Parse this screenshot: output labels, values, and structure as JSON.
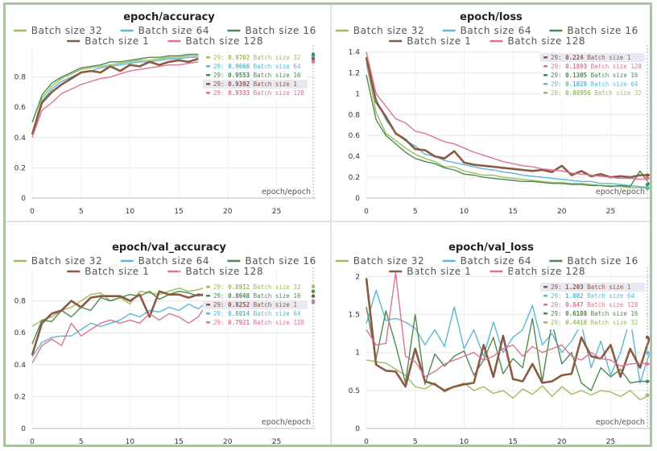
{
  "colors": {
    "Batch size 32": "#9bbd5e",
    "Batch size 64": "#5bb7d6",
    "Batch size 16": "#4c8a53",
    "Batch size 1": "#8b5a44",
    "Batch size 128": "#d97493"
  },
  "chart_data": [
    {
      "type": "line",
      "title": "epoch/accuracy",
      "xlabel": "epoch/epoch",
      "xlim": [
        0,
        29
      ],
      "ylim": [
        0,
        1
      ],
      "xticks": [
        0,
        5,
        10,
        15,
        20,
        25
      ],
      "yticks": [
        0,
        0.2,
        0.4,
        0.6,
        0.8
      ],
      "legend_rows": [
        [
          "Batch size 32",
          "Batch size 64",
          "Batch size 16"
        ],
        [
          "Batch size 1",
          "Batch size 128"
        ]
      ],
      "series": [
        {
          "name": "Batch size 32",
          "values": [
            0.43,
            0.66,
            0.74,
            0.79,
            0.82,
            0.85,
            0.86,
            0.87,
            0.88,
            0.89,
            0.9,
            0.91,
            0.91,
            0.92,
            0.93,
            0.93,
            0.94,
            0.94
          ]
        },
        {
          "name": "Batch size 64",
          "values": [
            0.42,
            0.64,
            0.72,
            0.77,
            0.8,
            0.83,
            0.84,
            0.86,
            0.87,
            0.88,
            0.89,
            0.9,
            0.9,
            0.91,
            0.92,
            0.92,
            0.93,
            0.93
          ]
        },
        {
          "name": "Batch size 16",
          "values": [
            0.5,
            0.68,
            0.76,
            0.8,
            0.83,
            0.86,
            0.87,
            0.88,
            0.9,
            0.9,
            0.91,
            0.92,
            0.93,
            0.93,
            0.94,
            0.94,
            0.95,
            0.95
          ]
        },
        {
          "name": "Batch size 1",
          "values": [
            0.42,
            0.63,
            0.7,
            0.75,
            0.79,
            0.83,
            0.84,
            0.83,
            0.87,
            0.84,
            0.88,
            0.87,
            0.9,
            0.88,
            0.9,
            0.91,
            0.9,
            0.92
          ]
        },
        {
          "name": "Batch size 128",
          "values": [
            0.4,
            0.58,
            0.63,
            0.69,
            0.72,
            0.75,
            0.77,
            0.79,
            0.8,
            0.82,
            0.84,
            0.85,
            0.86,
            0.87,
            0.88,
            0.88,
            0.89,
            0.9
          ]
        }
      ],
      "tooltip": [
        {
          "step": "29:",
          "value": "0.9702",
          "name": "Batch size 32"
        },
        {
          "step": "29:",
          "value": "0.9666",
          "name": "Batch size 64"
        },
        {
          "step": "29:",
          "value": "0.9553",
          "name": "Batch size 16"
        },
        {
          "step": "29:",
          "value": "0.9392",
          "name": "Batch size 1"
        },
        {
          "step": "29:",
          "value": "0.9333",
          "name": "Batch size 128"
        }
      ],
      "highlight_index": 3
    },
    {
      "type": "line",
      "title": "epoch/loss",
      "xlabel": "epoch/epoch",
      "xlim": [
        0,
        29
      ],
      "ylim": [
        0,
        1.45
      ],
      "xticks": [
        0,
        5,
        10,
        15,
        20,
        25
      ],
      "yticks": [
        0,
        0.2,
        0.4,
        0.6,
        0.8,
        1,
        1.2,
        1.4
      ],
      "legend_rows": [
        [
          "Batch size 32",
          "Batch size 64",
          "Batch size 16"
        ],
        [
          "Batch size 1",
          "Batch size 128"
        ]
      ],
      "series": [
        {
          "name": "Batch size 32",
          "values": [
            1.3,
            0.82,
            0.62,
            0.55,
            0.48,
            0.42,
            0.38,
            0.35,
            0.3,
            0.3,
            0.26,
            0.24,
            0.22,
            0.22,
            0.2,
            0.19,
            0.18,
            0.17,
            0.16,
            0.15,
            0.15,
            0.14,
            0.14,
            0.13,
            0.12,
            0.12,
            0.11,
            0.1,
            0.1,
            0.09
          ]
        },
        {
          "name": "Batch size 64",
          "values": [
            1.34,
            0.95,
            0.75,
            0.62,
            0.55,
            0.5,
            0.42,
            0.4,
            0.36,
            0.34,
            0.32,
            0.3,
            0.28,
            0.27,
            0.25,
            0.24,
            0.22,
            0.21,
            0.2,
            0.19,
            0.18,
            0.17,
            0.16,
            0.16,
            0.14,
            0.14,
            0.13,
            0.12,
            0.11,
            0.1
          ]
        },
        {
          "name": "Batch size 16",
          "values": [
            1.18,
            0.75,
            0.6,
            0.52,
            0.44,
            0.38,
            0.35,
            0.33,
            0.29,
            0.27,
            0.23,
            0.22,
            0.2,
            0.19,
            0.18,
            0.17,
            0.16,
            0.16,
            0.15,
            0.14,
            0.14,
            0.13,
            0.13,
            0.12,
            0.12,
            0.11,
            0.12,
            0.11,
            0.26,
            0.13
          ]
        },
        {
          "name": "Batch size 1",
          "values": [
            1.35,
            0.92,
            0.78,
            0.62,
            0.56,
            0.47,
            0.46,
            0.4,
            0.38,
            0.45,
            0.34,
            0.32,
            0.31,
            0.3,
            0.29,
            0.28,
            0.27,
            0.26,
            0.27,
            0.25,
            0.31,
            0.22,
            0.26,
            0.21,
            0.23,
            0.2,
            0.21,
            0.2,
            0.22,
            0.22
          ]
        },
        {
          "name": "Batch size 128",
          "values": [
            1.4,
            1.0,
            0.88,
            0.76,
            0.72,
            0.64,
            0.62,
            0.58,
            0.54,
            0.52,
            0.48,
            0.44,
            0.41,
            0.38,
            0.35,
            0.33,
            0.31,
            0.3,
            0.28,
            0.27,
            0.26,
            0.24,
            0.23,
            0.22,
            0.21,
            0.2,
            0.19,
            0.19,
            0.18,
            0.19
          ]
        }
      ],
      "tooltip": [
        {
          "step": "29:",
          "value": "0.224",
          "name": "Batch size 1"
        },
        {
          "step": "29:",
          "value": "0.1893",
          "name": "Batch size 128"
        },
        {
          "step": "29:",
          "value": "0.1305",
          "name": "Batch size 16"
        },
        {
          "step": "29:",
          "value": "0.1028",
          "name": "Batch size 64"
        },
        {
          "step": "29:",
          "value": "0.08956",
          "name": "Batch size 32"
        }
      ],
      "highlight_index": 0
    },
    {
      "type": "line",
      "title": "epoch/val_accuracy",
      "xlabel": "epoch/epoch",
      "xlim": [
        0,
        29
      ],
      "ylim": [
        0,
        1
      ],
      "xticks": [
        0,
        5,
        10,
        15,
        20,
        25
      ],
      "yticks": [
        0,
        0.2,
        0.4,
        0.6,
        0.8
      ],
      "legend_rows": [
        [
          "Batch size 32",
          "Batch size 64",
          "Batch size 16"
        ],
        [
          "Batch size 1",
          "Batch size 128"
        ]
      ],
      "series": [
        {
          "name": "Batch size 32",
          "values": [
            0.64,
            0.68,
            0.7,
            0.74,
            0.76,
            0.8,
            0.84,
            0.85,
            0.8,
            0.82,
            0.78,
            0.86,
            0.85,
            0.84,
            0.86,
            0.88,
            0.86,
            0.87,
            0.89
          ]
        },
        {
          "name": "Batch size 64",
          "values": [
            0.45,
            0.54,
            0.57,
            0.58,
            0.58,
            0.62,
            0.66,
            0.64,
            0.66,
            0.68,
            0.72,
            0.7,
            0.74,
            0.73,
            0.76,
            0.74,
            0.78,
            0.75,
            0.8
          ]
        },
        {
          "name": "Batch size 16",
          "values": [
            0.53,
            0.68,
            0.67,
            0.74,
            0.7,
            0.76,
            0.74,
            0.82,
            0.8,
            0.82,
            0.84,
            0.83,
            0.86,
            0.81,
            0.84,
            0.86,
            0.85,
            0.83,
            0.86
          ]
        },
        {
          "name": "Batch size 1",
          "values": [
            0.46,
            0.66,
            0.72,
            0.74,
            0.8,
            0.76,
            0.82,
            0.83,
            0.83,
            0.83,
            0.8,
            0.84,
            0.7,
            0.86,
            0.84,
            0.84,
            0.82,
            0.84,
            0.83
          ]
        },
        {
          "name": "Batch size 128",
          "values": [
            0.41,
            0.52,
            0.56,
            0.52,
            0.66,
            0.58,
            0.62,
            0.66,
            0.68,
            0.66,
            0.68,
            0.66,
            0.72,
            0.68,
            0.72,
            0.7,
            0.66,
            0.7,
            0.79
          ]
        }
      ],
      "tooltip": [
        {
          "step": "29:",
          "value": "0.8912",
          "name": "Batch size 32"
        },
        {
          "step": "29:",
          "value": "0.8648",
          "name": "Batch size 16"
        },
        {
          "step": "29:",
          "value": "0.8252",
          "name": "Batch size 1"
        },
        {
          "step": "29:",
          "value": "0.8014",
          "name": "Batch size 64"
        },
        {
          "step": "29:",
          "value": "0.7921",
          "name": "Batch size 128"
        }
      ],
      "highlight_index": 2
    },
    {
      "type": "line",
      "title": "epoch/val_loss",
      "xlabel": "epoch/epoch",
      "xlim": [
        0,
        29
      ],
      "ylim": [
        0,
        2.1
      ],
      "xticks": [
        0,
        5,
        10,
        15,
        20,
        25
      ],
      "yticks": [
        0,
        0.5,
        1,
        1.5,
        2
      ],
      "legend_rows": [
        [
          "Batch size 32",
          "Batch size 64",
          "Batch size 16"
        ],
        [
          "Batch size 1",
          "Batch size 128"
        ]
      ],
      "series": [
        {
          "name": "Batch size 32",
          "values": [
            0.9,
            0.88,
            0.86,
            0.78,
            0.7,
            0.55,
            0.52,
            0.6,
            0.48,
            0.55,
            0.6,
            0.5,
            0.55,
            0.46,
            0.5,
            0.4,
            0.52,
            0.45,
            0.56,
            0.42,
            0.55,
            0.45,
            0.5,
            0.44,
            0.5,
            0.48,
            0.42,
            0.5,
            0.38,
            0.44
          ]
        },
        {
          "name": "Batch size 64",
          "values": [
            1.38,
            1.82,
            1.42,
            1.45,
            1.4,
            1.32,
            1.1,
            1.3,
            1.08,
            1.6,
            1.05,
            1.3,
            0.95,
            1.4,
            1.0,
            1.2,
            1.3,
            1.62,
            1.1,
            1.25,
            1.0,
            1.15,
            1.38,
            0.8,
            1.15,
            0.7,
            1.0,
            1.45,
            0.6,
            1.0
          ]
        },
        {
          "name": "Batch size 16",
          "values": [
            1.6,
            0.92,
            1.55,
            1.1,
            0.6,
            1.5,
            0.58,
            0.98,
            0.82,
            0.95,
            1.02,
            0.7,
            0.9,
            1.2,
            0.72,
            0.92,
            0.8,
            1.45,
            0.62,
            1.4,
            0.85,
            1.0,
            0.6,
            0.5,
            0.8,
            0.68,
            0.78,
            0.6,
            0.62,
            0.62
          ]
        },
        {
          "name": "Batch size 1",
          "values": [
            1.98,
            0.84,
            0.76,
            0.75,
            0.55,
            1.05,
            0.62,
            0.58,
            0.5,
            0.55,
            0.58,
            0.6,
            1.1,
            0.68,
            1.22,
            0.65,
            0.62,
            0.85,
            0.6,
            0.62,
            0.7,
            0.72,
            1.2,
            0.95,
            0.92,
            1.1,
            0.68,
            1.05,
            0.8,
            1.2
          ]
        },
        {
          "name": "Batch size 128",
          "values": [
            1.3,
            1.1,
            1.12,
            2.05,
            0.95,
            0.88,
            0.68,
            0.75,
            0.85,
            0.9,
            0.95,
            1.0,
            0.9,
            0.95,
            1.05,
            1.1,
            0.95,
            1.08,
            1.0,
            1.05,
            1.1,
            0.95,
            0.9,
            1.0,
            0.92,
            0.9,
            0.82,
            0.85,
            0.86,
            0.85
          ]
        }
      ],
      "tooltip": [
        {
          "step": "29:",
          "value": "1.203",
          "name": "Batch size 1"
        },
        {
          "step": "29:",
          "value": "1.002",
          "name": "Batch size 64"
        },
        {
          "step": "29:",
          "value": "0.847",
          "name": "Batch size 128"
        },
        {
          "step": "29:",
          "value": "0.6188",
          "name": "Batch size 16"
        },
        {
          "step": "29:",
          "value": "0.4416",
          "name": "Batch size 32"
        }
      ],
      "highlight_index": 0
    }
  ]
}
